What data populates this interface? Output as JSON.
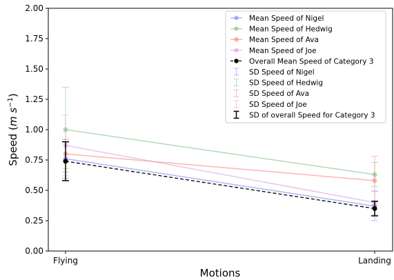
{
  "chart_data": {
    "type": "line",
    "title": "",
    "xlabel": "Motions",
    "ylabel_prefix": "Speed (",
    "ylabel_unit": "m s",
    "ylabel_exp": "−1",
    "ylabel_suffix": ")",
    "categories": [
      "Flying",
      "Landing"
    ],
    "ylim": [
      0,
      2.0
    ],
    "yticks": [
      "0.00",
      "0.25",
      "0.50",
      "0.75",
      "1.00",
      "1.25",
      "1.50",
      "1.75",
      "2.00"
    ],
    "grid": false,
    "legend_position": "upper-right",
    "series": [
      {
        "name": "Mean Speed of Nigel",
        "values": [
          0.76,
          0.37
        ],
        "sd": [
          0.16,
          0.12
        ],
        "color": "#8080ff",
        "sd_name": "SD Speed of Nigel"
      },
      {
        "name": "Mean Speed of Hedwig",
        "values": [
          1.0,
          0.63
        ],
        "sd": [
          0.35,
          0.1
        ],
        "color": "#80c080",
        "sd_name": "SD Speed of Hedwig"
      },
      {
        "name": "Mean Speed of Ava",
        "values": [
          0.8,
          0.58
        ],
        "sd": [
          0.12,
          0.2
        ],
        "color": "#ff8080",
        "sd_name": "SD Speed of Ava"
      },
      {
        "name": "Mean Speed of Joe",
        "values": [
          0.87,
          0.4
        ],
        "sd": [
          0.25,
          0.1
        ],
        "color": "#d9a0d9",
        "sd_name": "SD Speed of Joe"
      }
    ],
    "overall": {
      "name": "Overall Mean Speed of Category 3",
      "values": [
        0.74,
        0.35
      ],
      "sd": [
        0.16,
        0.06
      ],
      "color": "#000000",
      "sd_name": "SD of overall Speed for Category 3"
    }
  }
}
